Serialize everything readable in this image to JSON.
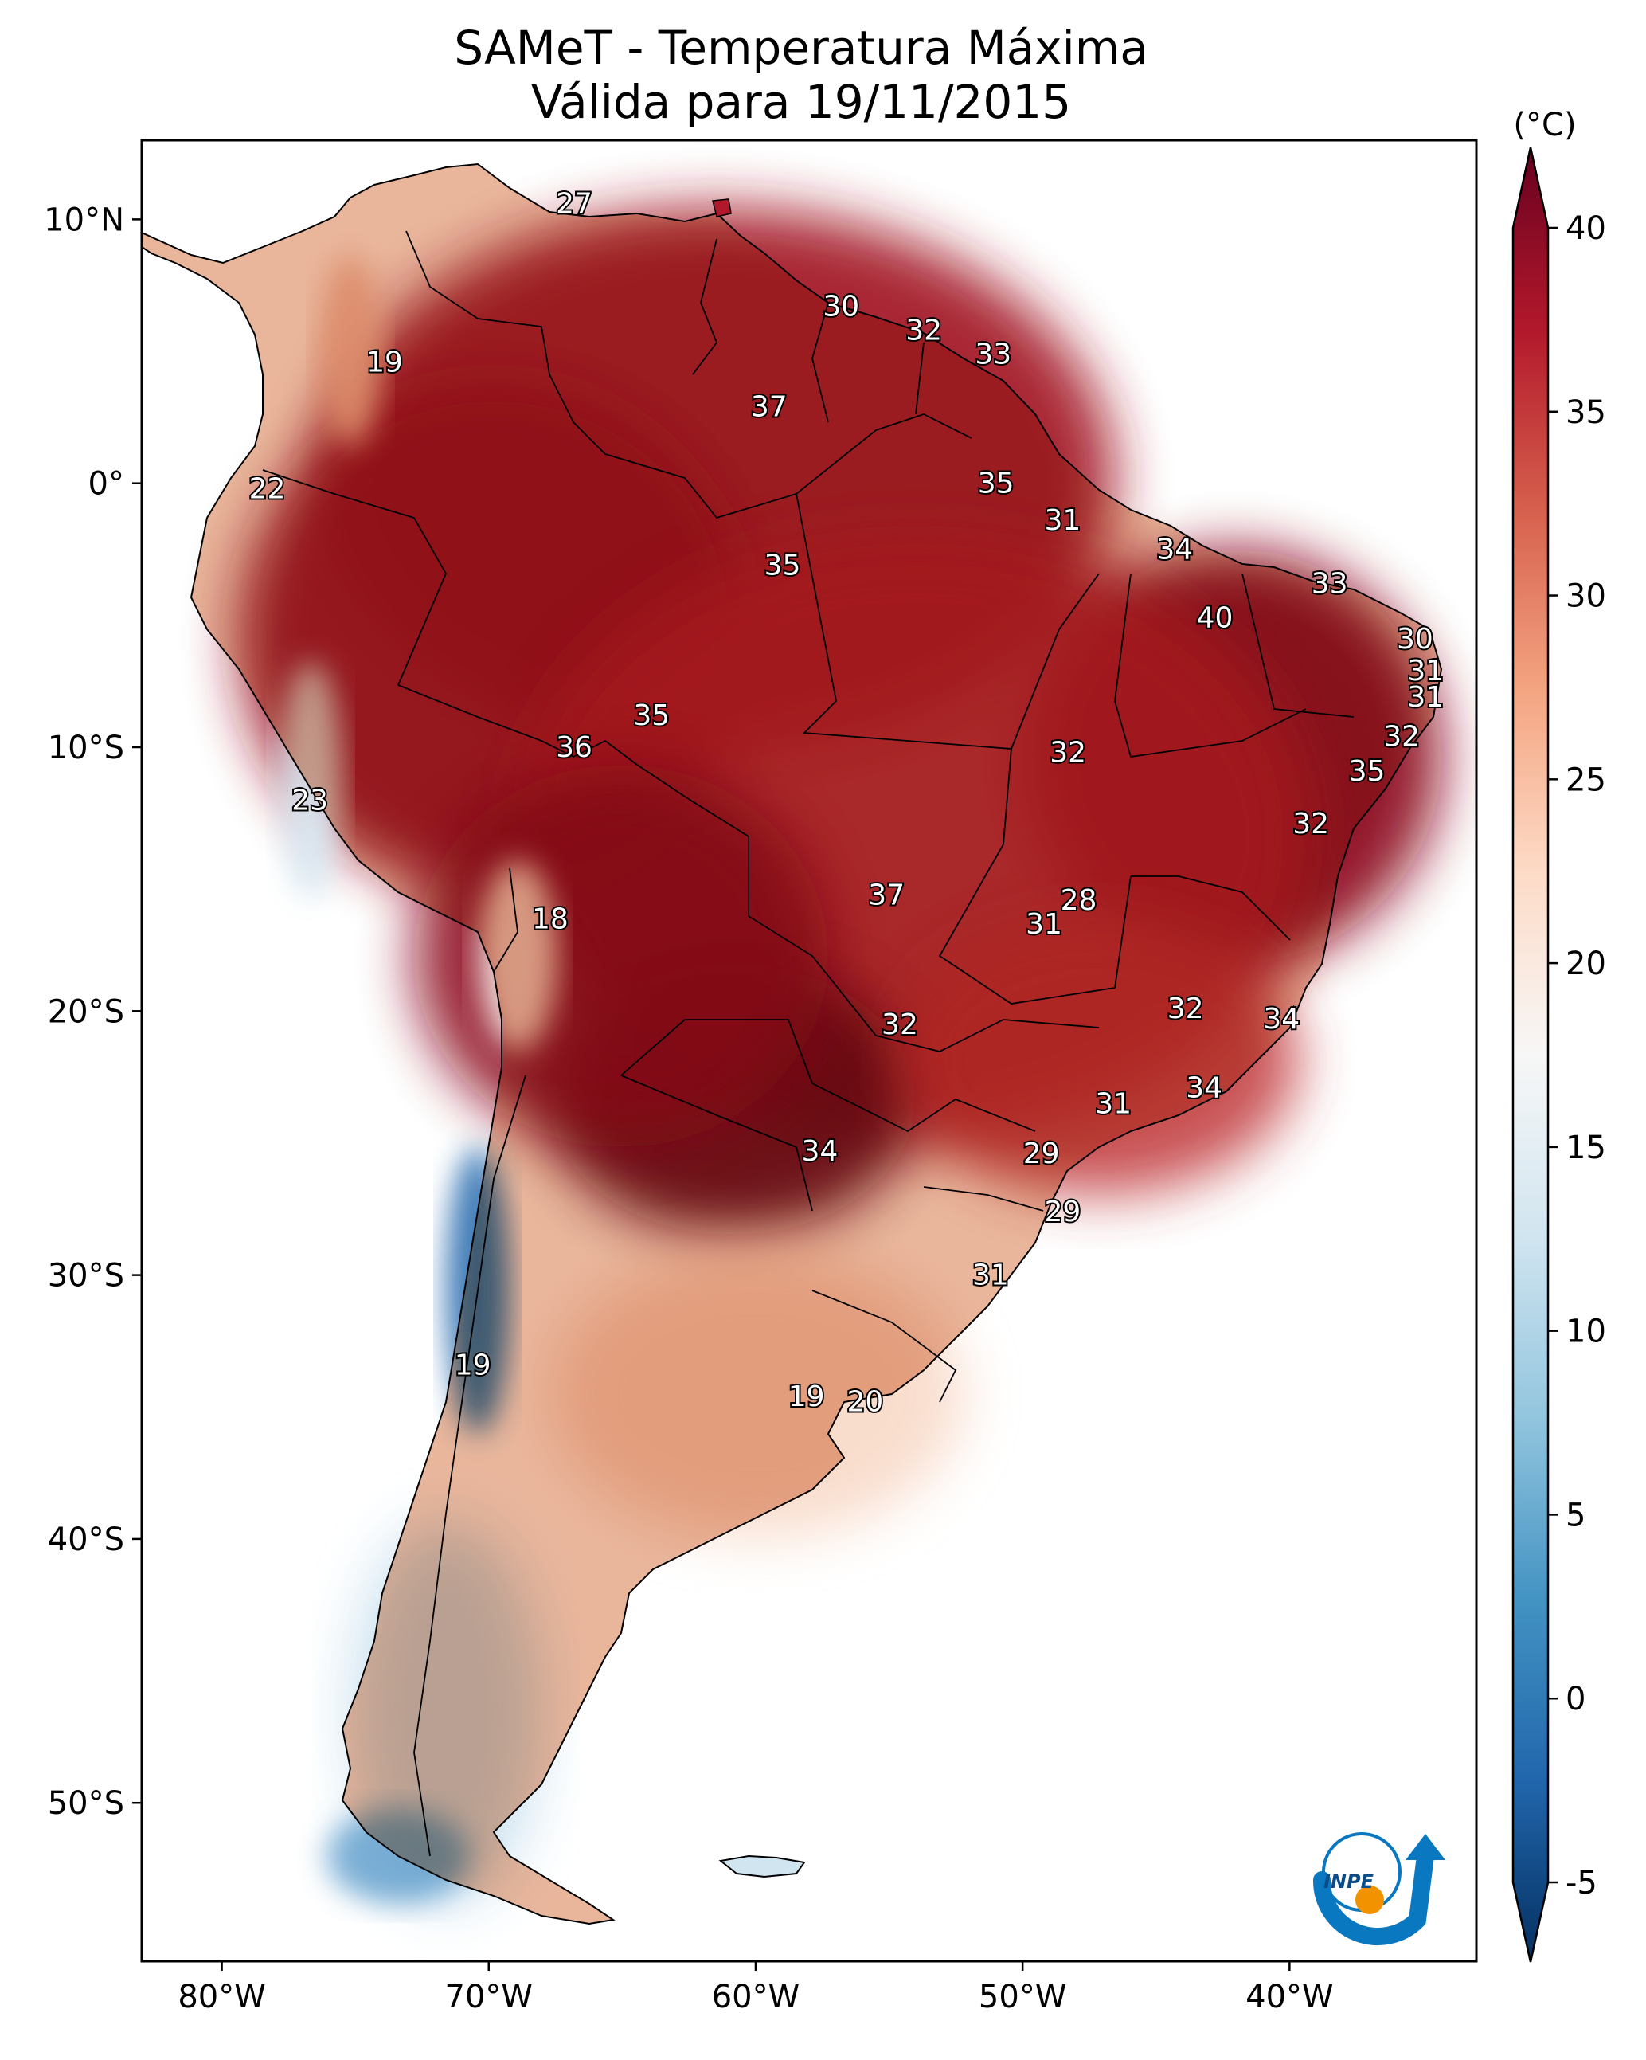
{
  "title": {
    "line1": "SAMeT - Temperatura Máxima",
    "line2": "Válida para 19/11/2015"
  },
  "map": {
    "lon_range": [
      -83,
      -33
    ],
    "lat_range": [
      -56,
      13
    ],
    "lon_ticks": [
      {
        "value": -80,
        "label": "80°W"
      },
      {
        "value": -70,
        "label": "70°W"
      },
      {
        "value": -60,
        "label": "60°W"
      },
      {
        "value": -50,
        "label": "50°W"
      },
      {
        "value": -40,
        "label": "40°W"
      }
    ],
    "lat_ticks": [
      {
        "value": 10,
        "label": "10°N"
      },
      {
        "value": 0,
        "label": "0°"
      },
      {
        "value": -10,
        "label": "10°S"
      },
      {
        "value": -20,
        "label": "20°S"
      },
      {
        "value": -30,
        "label": "30°S"
      },
      {
        "value": -40,
        "label": "40°S"
      },
      {
        "value": -50,
        "label": "50°S"
      }
    ],
    "station_labels": [
      {
        "text": "27",
        "lon": -66.8,
        "lat": 10.6
      },
      {
        "text": "30",
        "lon": -56.8,
        "lat": 6.7
      },
      {
        "text": "32",
        "lon": -53.7,
        "lat": 5.8
      },
      {
        "text": "33",
        "lon": -51.1,
        "lat": 4.9
      },
      {
        "text": "19",
        "lon": -73.9,
        "lat": 4.6
      },
      {
        "text": "37",
        "lon": -59.5,
        "lat": 2.9
      },
      {
        "text": "35",
        "lon": -51.0,
        "lat": 0.0
      },
      {
        "text": "22",
        "lon": -78.3,
        "lat": -0.2
      },
      {
        "text": "31",
        "lon": -48.5,
        "lat": -1.4
      },
      {
        "text": "34",
        "lon": -44.3,
        "lat": -2.5
      },
      {
        "text": "35",
        "lon": -59.0,
        "lat": -3.1
      },
      {
        "text": "33",
        "lon": -38.5,
        "lat": -3.8
      },
      {
        "text": "40",
        "lon": -42.8,
        "lat": -5.1
      },
      {
        "text": "30",
        "lon": -35.3,
        "lat": -5.9
      },
      {
        "text": "31",
        "lon": -34.9,
        "lat": -7.1
      },
      {
        "text": "31",
        "lon": -34.9,
        "lat": -8.1
      },
      {
        "text": "35",
        "lon": -63.9,
        "lat": -8.8
      },
      {
        "text": "36",
        "lon": -66.8,
        "lat": -10.0
      },
      {
        "text": "32",
        "lon": -48.3,
        "lat": -10.2
      },
      {
        "text": "32",
        "lon": -35.8,
        "lat": -9.6
      },
      {
        "text": "35",
        "lon": -37.1,
        "lat": -10.9
      },
      {
        "text": "23",
        "lon": -76.7,
        "lat": -12.0
      },
      {
        "text": "32",
        "lon": -39.2,
        "lat": -12.9
      },
      {
        "text": "37",
        "lon": -55.1,
        "lat": -15.6
      },
      {
        "text": "28",
        "lon": -47.9,
        "lat": -15.8
      },
      {
        "text": "18",
        "lon": -67.7,
        "lat": -16.5
      },
      {
        "text": "31",
        "lon": -49.2,
        "lat": -16.7
      },
      {
        "text": "32",
        "lon": -43.9,
        "lat": -19.9
      },
      {
        "text": "34",
        "lon": -40.3,
        "lat": -20.3
      },
      {
        "text": "32",
        "lon": -54.6,
        "lat": -20.5
      },
      {
        "text": "34",
        "lon": -43.2,
        "lat": -22.9
      },
      {
        "text": "31",
        "lon": -46.6,
        "lat": -23.5
      },
      {
        "text": "34",
        "lon": -57.6,
        "lat": -25.3
      },
      {
        "text": "29",
        "lon": -49.3,
        "lat": -25.4
      },
      {
        "text": "29",
        "lon": -48.5,
        "lat": -27.6
      },
      {
        "text": "31",
        "lon": -51.2,
        "lat": -30.0
      },
      {
        "text": "19",
        "lon": -70.6,
        "lat": -33.4
      },
      {
        "text": "19",
        "lon": -58.1,
        "lat": -34.6
      },
      {
        "text": "20",
        "lon": -55.9,
        "lat": -34.8
      }
    ]
  },
  "colorbar": {
    "unit": "(°C)",
    "min": -5,
    "max": 40,
    "ticks": [
      "-5",
      "0",
      "5",
      "10",
      "15",
      "20",
      "25",
      "30",
      "35",
      "40"
    ],
    "stops": [
      "#053061",
      "#2166ac",
      "#4393c3",
      "#92c5de",
      "#d1e5f0",
      "#f7f7f7",
      "#fddbc7",
      "#f4a582",
      "#d6604d",
      "#b2182b",
      "#67001f"
    ]
  },
  "logo": {
    "text": "INPE"
  }
}
